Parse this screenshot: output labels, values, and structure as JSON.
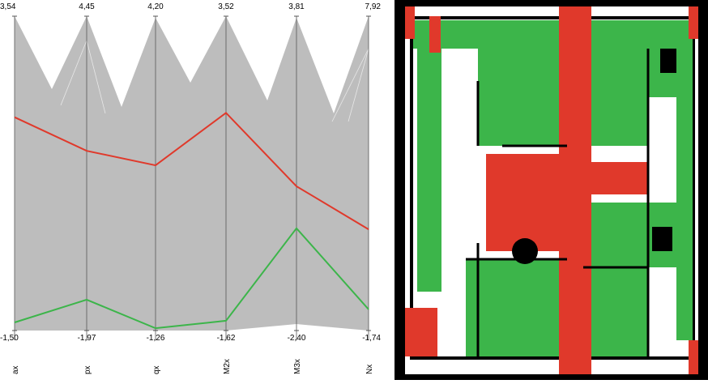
{
  "chart_data": {
    "type": "parallel",
    "dimensions": [
      "ax",
      "px",
      "qx",
      "M2x",
      "M3x",
      "Nx"
    ],
    "ylims": [
      [
        {
          "value": -1.5,
          "label": "-1,50"
        },
        {
          "value": 3.54,
          "label": "3,54"
        }
      ],
      [
        {
          "value": -1.97,
          "label": "-1,97"
        },
        {
          "value": 4.45,
          "label": "4,45"
        }
      ],
      [
        {
          "value": -1.26,
          "label": "-1,26"
        },
        {
          "value": 4.2,
          "label": "4,20"
        }
      ],
      [
        {
          "value": -1.62,
          "label": "-1,62"
        },
        {
          "value": 3.52,
          "label": "3,52"
        }
      ],
      [
        {
          "value": -2.4,
          "label": "-2,40"
        },
        {
          "value": 3.81,
          "label": "3,81"
        }
      ],
      [
        {
          "value": -1.74,
          "label": "-1,74"
        },
        {
          "value": 7.92,
          "label": "7,92"
        }
      ]
    ],
    "series": [
      {
        "color": "#e0392b",
        "values": [
          1.92,
          1.7,
          1.61,
          1.94,
          0.45,
          1.37
        ]
      },
      {
        "color": "#3cb54a",
        "values": [
          -1.37,
          -1.34,
          -1.22,
          -1.46,
          -0.38,
          -1.09
        ]
      }
    ]
  }
}
